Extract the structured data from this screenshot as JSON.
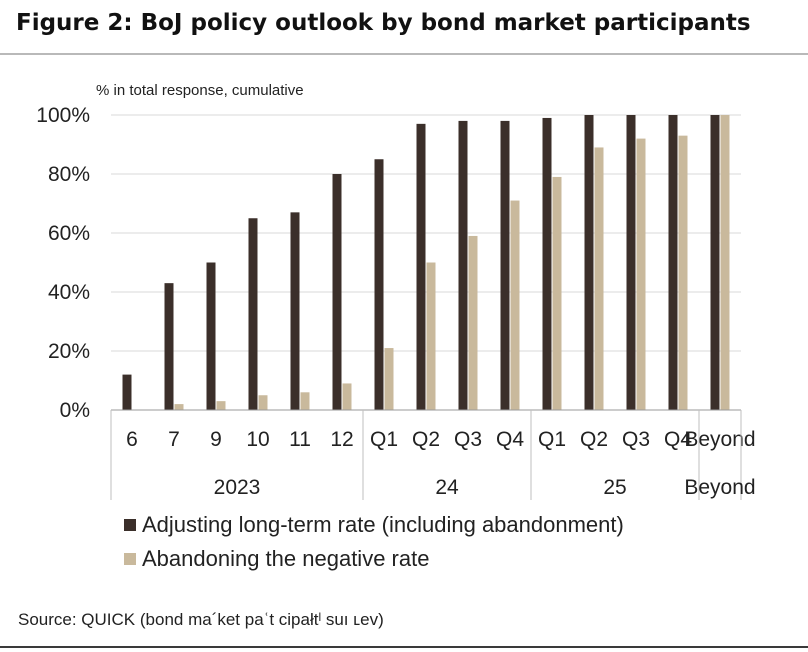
{
  "title": "Figure 2: BoJ policy outlook by bond market participants",
  "source": "Source: QUICK (bond ma´ket paʿt cipałtˡ suı ʟev)",
  "colors": {
    "series1": "#3b2f2a",
    "series2": "#c9b99c",
    "grid": "#d9d9d9"
  },
  "chart_data": {
    "type": "bar",
    "ylabel": "% in total response, cumulative",
    "ylim": [
      0,
      100
    ],
    "yticks": [
      "0%",
      "20%",
      "40%",
      "60%",
      "80%",
      "100%"
    ],
    "categories": [
      "6",
      "7",
      "9",
      "10",
      "11",
      "12",
      "Q1",
      "Q2",
      "Q3",
      "Q4",
      "Q1",
      "Q2",
      "Q3",
      "Q4",
      "Beyond"
    ],
    "groups": [
      {
        "label": "2023",
        "count": 6
      },
      {
        "label": "24",
        "count": 4
      },
      {
        "label": "25",
        "count": 4
      },
      {
        "label": "Beyond",
        "count": 1
      }
    ],
    "series": [
      {
        "name": "Adjusting long-term rate (including abandonment)",
        "values": [
          12,
          43,
          50,
          65,
          67,
          80,
          85,
          97,
          98,
          98,
          99,
          100,
          100,
          100,
          100
        ]
      },
      {
        "name": "Abandoning the negative rate",
        "values": [
          0,
          2,
          3,
          5,
          6,
          9,
          21,
          50,
          59,
          71,
          79,
          89,
          92,
          93,
          100
        ]
      }
    ],
    "legend": "bottom"
  }
}
